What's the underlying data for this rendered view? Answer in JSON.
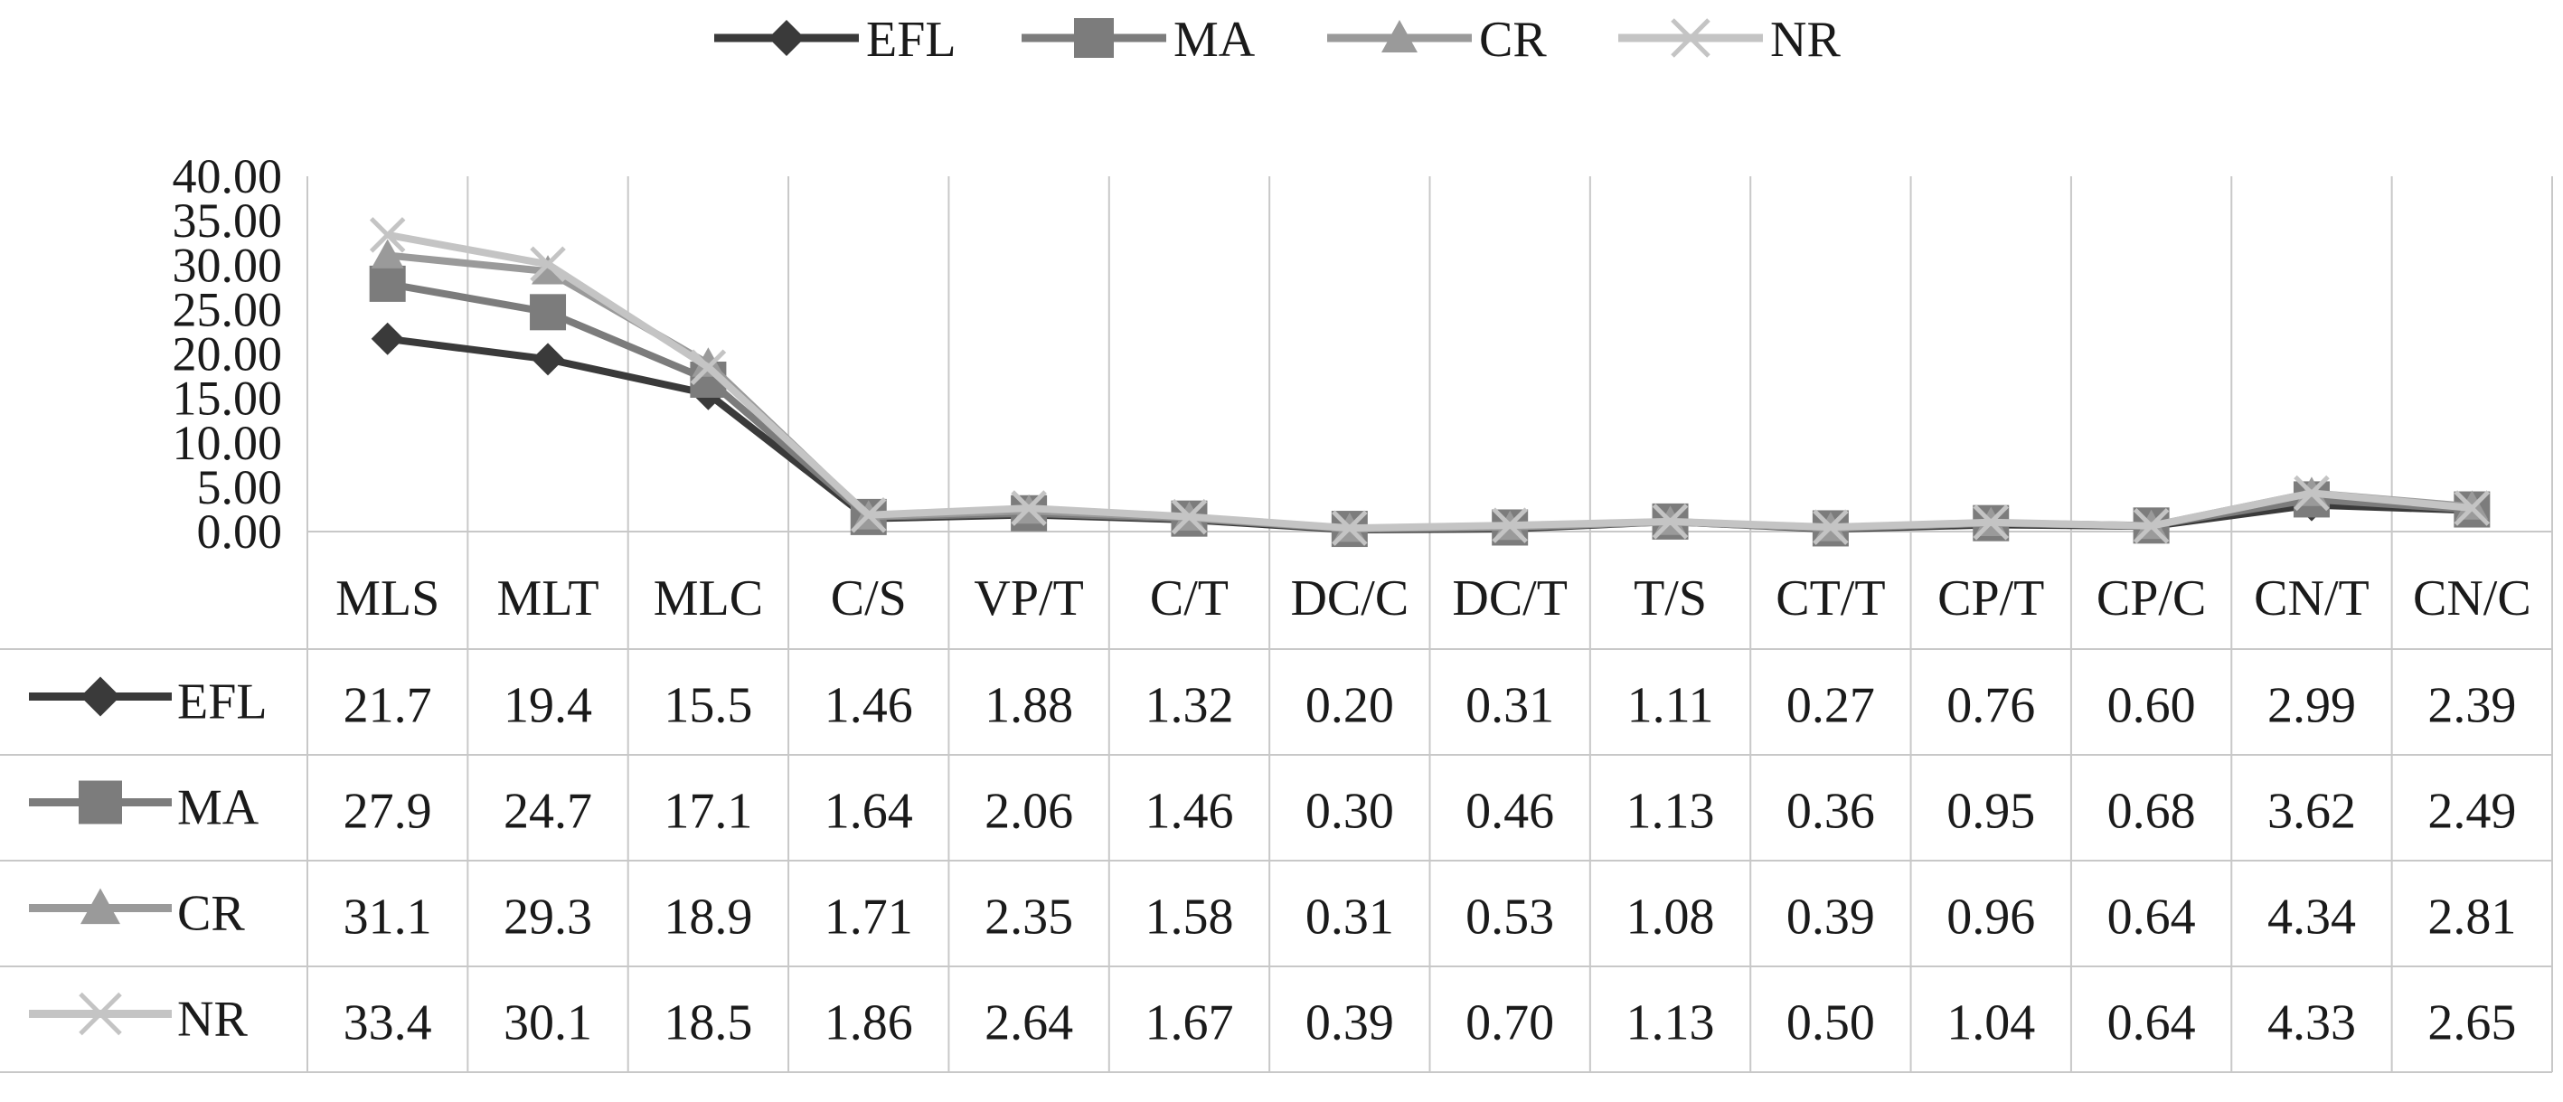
{
  "chart_data": {
    "type": "line",
    "categories": [
      "MLS",
      "MLT",
      "MLC",
      "C/S",
      "VP/T",
      "C/T",
      "DC/C",
      "DC/T",
      "T/S",
      "CT/T",
      "CP/T",
      "CP/C",
      "CN/T",
      "CN/C"
    ],
    "series": [
      {
        "name": "EFL",
        "marker": "diamond",
        "color": "#3a3a3a",
        "values": [
          21.7,
          19.4,
          15.5,
          1.46,
          1.88,
          1.32,
          0.2,
          0.31,
          1.11,
          0.27,
          0.76,
          0.6,
          2.99,
          2.39
        ],
        "labels": [
          "21.7",
          "19.4",
          "15.5",
          "1.46",
          "1.88",
          "1.32",
          "0.20",
          "0.31",
          "1.11",
          "0.27",
          "0.76",
          "0.60",
          "2.99",
          "2.39"
        ]
      },
      {
        "name": "MA",
        "marker": "square",
        "color": "#7c7c7c",
        "values": [
          27.9,
          24.7,
          17.1,
          1.64,
          2.06,
          1.46,
          0.3,
          0.46,
          1.13,
          0.36,
          0.95,
          0.68,
          3.62,
          2.49
        ],
        "labels": [
          "27.9",
          "24.7",
          "17.1",
          "1.64",
          "2.06",
          "1.46",
          "0.30",
          "0.46",
          "1.13",
          "0.36",
          "0.95",
          "0.68",
          "3.62",
          "2.49"
        ]
      },
      {
        "name": "CR",
        "marker": "triangle",
        "color": "#9a9a9a",
        "values": [
          31.1,
          29.3,
          18.9,
          1.71,
          2.35,
          1.58,
          0.31,
          0.53,
          1.08,
          0.39,
          0.96,
          0.64,
          4.34,
          2.81
        ],
        "labels": [
          "31.1",
          "29.3",
          "18.9",
          "1.71",
          "2.35",
          "1.58",
          "0.31",
          "0.53",
          "1.08",
          "0.39",
          "0.96",
          "0.64",
          "4.34",
          "2.81"
        ]
      },
      {
        "name": "NR",
        "marker": "x",
        "color": "#c4c4c4",
        "values": [
          33.4,
          30.1,
          18.5,
          1.86,
          2.64,
          1.67,
          0.39,
          0.7,
          1.13,
          0.5,
          1.04,
          0.64,
          4.33,
          2.65
        ],
        "labels": [
          "33.4",
          "30.1",
          "18.5",
          "1.86",
          "2.64",
          "1.67",
          "0.39",
          "0.70",
          "1.13",
          "0.50",
          "1.04",
          "0.64",
          "4.33",
          "2.65"
        ]
      }
    ],
    "yticks": [
      "0.00",
      "5.00",
      "10.00",
      "15.00",
      "20.00",
      "25.00",
      "30.00",
      "35.00",
      "40.00"
    ],
    "ylim": [
      0,
      40
    ],
    "grid": true,
    "legend": "top",
    "data_table": true
  }
}
